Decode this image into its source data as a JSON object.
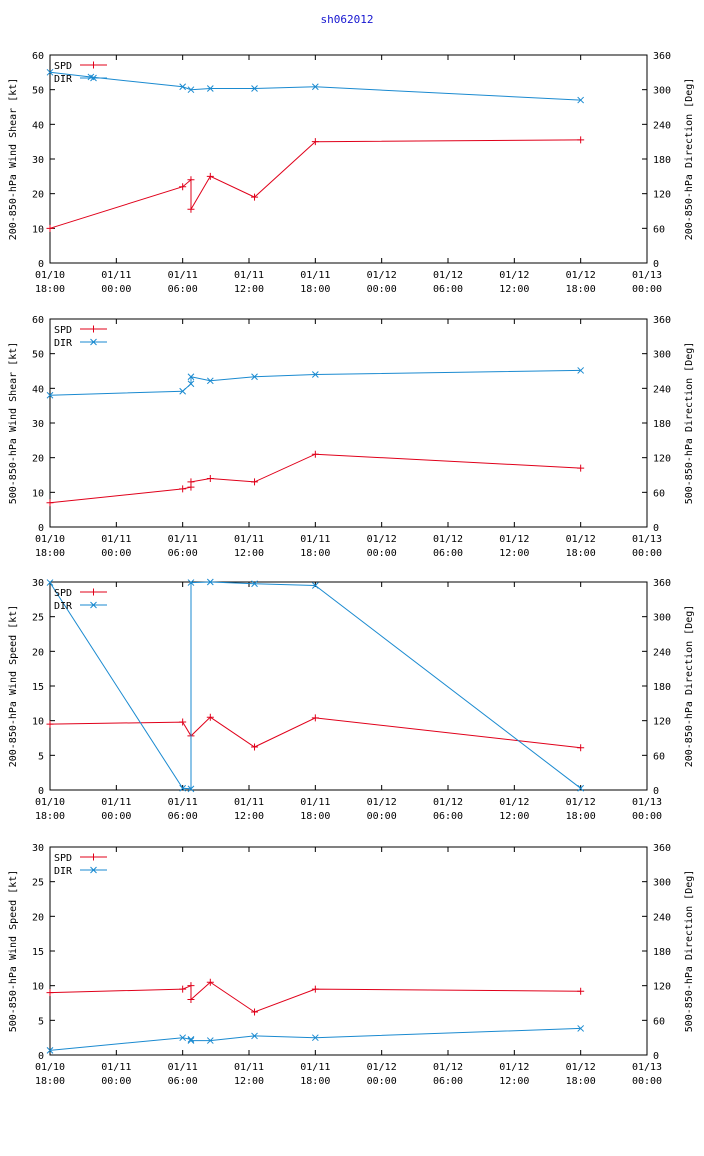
{
  "title": "sh062012",
  "colors": {
    "spd": "#e0001a",
    "dir": "#1a8ad0",
    "title": "#1515d0",
    "axis": "#000000"
  },
  "x_ticks": [
    {
      "date": "01/10",
      "time": "18:00"
    },
    {
      "date": "01/11",
      "time": "00:00"
    },
    {
      "date": "01/11",
      "time": "06:00"
    },
    {
      "date": "01/11",
      "time": "12:00"
    },
    {
      "date": "01/11",
      "time": "18:00"
    },
    {
      "date": "01/12",
      "time": "00:00"
    },
    {
      "date": "01/12",
      "time": "06:00"
    },
    {
      "date": "01/12",
      "time": "12:00"
    },
    {
      "date": "01/12",
      "time": "18:00"
    },
    {
      "date": "01/13",
      "time": "00:00"
    }
  ],
  "chart_data": [
    {
      "type": "line",
      "ylabel": "200-850-hPa Wind Shear [kt]",
      "y2label": "200-850-hPa Direction [Deg]",
      "xlim": [
        0,
        54
      ],
      "ylim": [
        0,
        60
      ],
      "y2lim": [
        0,
        360
      ],
      "yticks": [
        0,
        10,
        20,
        30,
        40,
        50,
        60
      ],
      "y2ticks": [
        0,
        60,
        120,
        180,
        240,
        300,
        360
      ],
      "legend": [
        "SPD",
        "DIR"
      ],
      "series": [
        {
          "name": "SPD",
          "axis": "left",
          "x": [
            0,
            12,
            12.75,
            12.75,
            14.5,
            18.5,
            24,
            48
          ],
          "y": [
            10,
            22,
            24,
            15.5,
            25,
            19,
            35,
            35.5
          ]
        },
        {
          "name": "DIR",
          "axis": "right",
          "x": [
            0,
            3.7,
            12,
            12.75,
            14.5,
            18.5,
            24,
            48
          ],
          "y": [
            330,
            322,
            305,
            300,
            302,
            302,
            305,
            282
          ]
        }
      ]
    },
    {
      "type": "line",
      "ylabel": "500-850-hPa Wind Shear [kt]",
      "y2label": "500-850-hPa Direction [Deg]",
      "xlim": [
        0,
        54
      ],
      "ylim": [
        0,
        60
      ],
      "y2lim": [
        0,
        360
      ],
      "yticks": [
        0,
        10,
        20,
        30,
        40,
        50,
        60
      ],
      "y2ticks": [
        0,
        60,
        120,
        180,
        240,
        300,
        360
      ],
      "legend": [
        "SPD",
        "DIR"
      ],
      "series": [
        {
          "name": "SPD",
          "axis": "left",
          "x": [
            0,
            12,
            12.75,
            12.75,
            14.5,
            18.5,
            24,
            48
          ],
          "y": [
            7,
            11,
            11.5,
            13,
            14,
            13,
            21,
            17
          ]
        },
        {
          "name": "DIR",
          "axis": "right",
          "x": [
            0,
            12,
            12.75,
            12.75,
            14.5,
            18.5,
            24,
            48
          ],
          "y": [
            228,
            235,
            248,
            260,
            253,
            260,
            264,
            271
          ]
        }
      ]
    },
    {
      "type": "line",
      "ylabel": "200-850-hPa Wind Speed [kt]",
      "y2label": "200-850-hPa Direction [Deg]",
      "xlim": [
        0,
        54
      ],
      "ylim": [
        0,
        30
      ],
      "y2lim": [
        0,
        360
      ],
      "yticks": [
        0,
        5,
        10,
        15,
        20,
        25,
        30
      ],
      "y2ticks": [
        0,
        60,
        120,
        180,
        240,
        300,
        360
      ],
      "legend": [
        "SPD",
        "DIR"
      ],
      "series": [
        {
          "name": "SPD",
          "axis": "left",
          "x": [
            0,
            12,
            12.75,
            14.5,
            18.5,
            24,
            48
          ],
          "y": [
            9.5,
            9.8,
            7.8,
            10.5,
            6.2,
            10.4,
            6.1
          ]
        },
        {
          "name": "DIR",
          "axis": "right",
          "x": [
            0,
            12,
            12.75,
            12.75,
            14.5,
            18.5,
            24,
            48
          ],
          "y": [
            359,
            3,
            2,
            359,
            360,
            357,
            354,
            3
          ]
        }
      ]
    },
    {
      "type": "line",
      "ylabel": "500-850-hPa Wind Speed [kt]",
      "y2label": "500-850-hPa Direction [Deg]",
      "xlim": [
        0,
        54
      ],
      "ylim": [
        0,
        30
      ],
      "y2lim": [
        0,
        360
      ],
      "yticks": [
        0,
        5,
        10,
        15,
        20,
        25,
        30
      ],
      "y2ticks": [
        0,
        60,
        120,
        180,
        240,
        300,
        360
      ],
      "legend": [
        "SPD",
        "DIR"
      ],
      "series": [
        {
          "name": "SPD",
          "axis": "left",
          "x": [
            0,
            12,
            12.75,
            12.75,
            14.5,
            18.5,
            24,
            48
          ],
          "y": [
            9,
            9.5,
            10,
            8,
            10.5,
            6.2,
            9.5,
            9.2
          ]
        },
        {
          "name": "DIR",
          "axis": "right",
          "x": [
            0,
            12,
            12.75,
            12.75,
            14.5,
            18.5,
            24,
            48
          ],
          "y": [
            8,
            30,
            27,
            25,
            25,
            33,
            30,
            46
          ]
        }
      ]
    }
  ]
}
